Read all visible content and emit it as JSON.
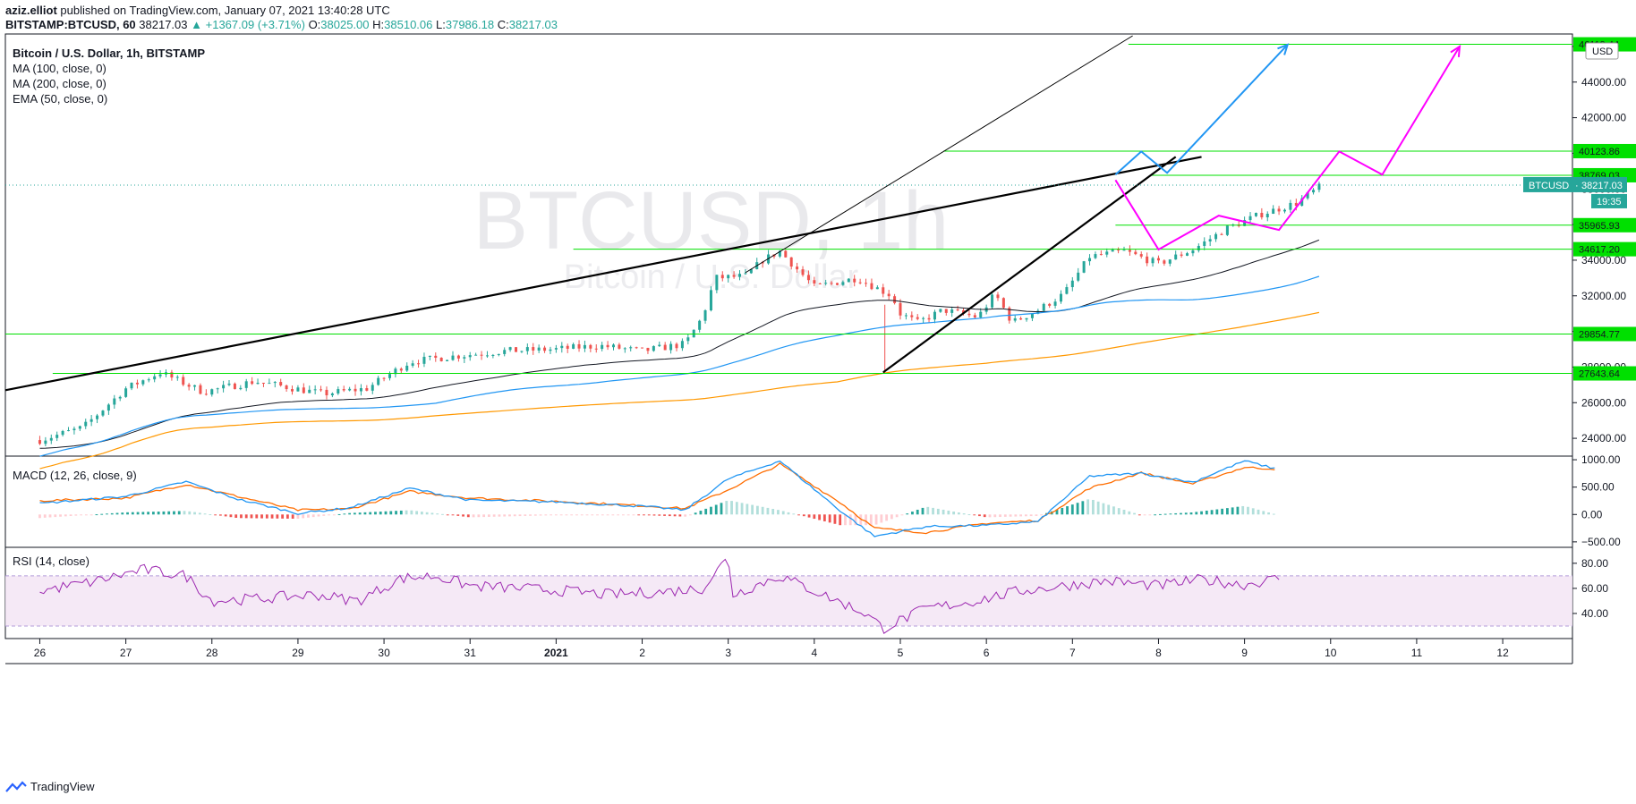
{
  "header": {
    "author": "aziz.elliot",
    "published": "published on TradingView.com, January 07, 2021 13:40:28 UTC",
    "symbol": "BITSTAMP:BTCUSD, 60",
    "last": "38217.03",
    "change": "▲ +1367.09 (+3.71%)",
    "o_label": "O:",
    "o": "38025.00",
    "h_label": "H:",
    "h": "38510.06",
    "l_label": "L:",
    "l": "37986.18",
    "c_label": "C:",
    "c": "38217.03"
  },
  "footer": {
    "brand": "TradingView"
  },
  "colors": {
    "up": "#26a69a",
    "down": "#ef5350",
    "ma100": "#2196f3",
    "ma200": "#ff9800",
    "ema50": "#131722",
    "level": "#00e000",
    "macd": "#2196f3",
    "signal": "#ff6d00",
    "rsi": "#9c27b0",
    "proj_blue": "#2196f3",
    "proj_magenta": "#ff00ff"
  },
  "chart_data": [
    {
      "type": "candlestick",
      "title": "Bitcoin / U.S. Dollar, 1h, BITSTAMP",
      "watermark": "BTCUSD, 1h",
      "watermark_sub": "Bitcoin / U.S. Dollar",
      "legend": [
        "MA (100, close, 0)",
        "MA (200, close, 0)",
        "EMA (50, close, 0)"
      ],
      "currency": "USD",
      "x_labels": [
        "26",
        "27",
        "28",
        "29",
        "30",
        "31",
        "2021",
        "2",
        "3",
        "4",
        "5",
        "6",
        "7",
        "8",
        "9",
        "10",
        "11",
        "12"
      ],
      "x_range_days": [
        -0.4,
        17.8
      ],
      "y_range": [
        23000,
        46700
      ],
      "y_ticks": [
        24000,
        26000,
        28000,
        30000,
        32000,
        34000,
        36000,
        38000,
        40000,
        42000,
        44000,
        46000
      ],
      "y_tick_labels": [
        "24000.00",
        "26000.00",
        "28000.00",
        "30000.00",
        "32000.00",
        "34000.00",
        "36000.00",
        "38000.00",
        "40000.00",
        "42000.00",
        "44000.00",
        "46000.00"
      ],
      "price_path": [
        [
          0,
          23900
        ],
        [
          0.5,
          24600
        ],
        [
          1,
          26800
        ],
        [
          1.4,
          27700
        ],
        [
          1.9,
          26600
        ],
        [
          2.5,
          27200
        ],
        [
          3.3,
          26500
        ],
        [
          3.8,
          26800
        ],
        [
          4.3,
          28300
        ],
        [
          4.8,
          28600
        ],
        [
          5.4,
          28900
        ],
        [
          6,
          29000
        ],
        [
          6.5,
          29200
        ],
        [
          7,
          28900
        ],
        [
          7.5,
          29300
        ],
        [
          7.7,
          30800
        ],
        [
          7.85,
          33000
        ],
        [
          8.2,
          33100
        ],
        [
          8.4,
          34000
        ],
        [
          8.6,
          34500
        ],
        [
          9,
          32500
        ],
        [
          9.5,
          33000
        ],
        [
          9.9,
          32000
        ],
        [
          10,
          31000
        ],
        [
          10.2,
          30500
        ],
        [
          10.5,
          31200
        ],
        [
          10.9,
          30800
        ],
        [
          11.1,
          32100
        ],
        [
          11.3,
          30500
        ],
        [
          11.6,
          31200
        ],
        [
          11.9,
          32100
        ],
        [
          12.2,
          34200
        ],
        [
          12.6,
          34500
        ],
        [
          13,
          33800
        ],
        [
          13.4,
          34600
        ],
        [
          13.8,
          35800
        ],
        [
          14.2,
          36600
        ],
        [
          14.6,
          37200
        ],
        [
          14.9,
          38200
        ]
      ],
      "price_label": {
        "name": "BTCUSD",
        "value": "38217.03",
        "countdown": "19:35"
      },
      "levels": [
        {
          "value": 46119.44,
          "label": "46119.44"
        },
        {
          "value": 40123.86,
          "label": "40123.86"
        },
        {
          "value": 38769.03,
          "label": "38769.03"
        },
        {
          "value": 35965.93,
          "label": "35965.93"
        },
        {
          "value": 34617.2,
          "label": "34617.20"
        },
        {
          "value": 29854.77,
          "label": "29854.77"
        },
        {
          "value": 27643.64,
          "label": "27643.64"
        }
      ],
      "trendlines": [
        {
          "from": [
            -0.4,
            26700
          ],
          "to": [
            13.5,
            39800
          ],
          "weight": "thick"
        },
        {
          "from": [
            9.8,
            27700
          ],
          "to": [
            13.2,
            39800
          ],
          "weight": "thick"
        },
        {
          "from": [
            8.2,
            33300
          ],
          "to": [
            12.7,
            46600
          ],
          "weight": "thin"
        }
      ],
      "projections": [
        {
          "color": "blue",
          "path": [
            [
              12.5,
              38800
            ],
            [
              12.8,
              40100
            ],
            [
              13.1,
              38900
            ],
            [
              14.5,
              46100
            ]
          ]
        },
        {
          "color": "magenta",
          "path": [
            [
              12.5,
              38500
            ],
            [
              13.0,
              34600
            ],
            [
              13.7,
              36500
            ],
            [
              14.4,
              35700
            ],
            [
              15.1,
              40100
            ],
            [
              15.6,
              38800
            ],
            [
              16.5,
              46000
            ]
          ]
        }
      ]
    },
    {
      "type": "line",
      "title": "MACD (12, 26, close, 9)",
      "y_range": [
        -600,
        1050
      ],
      "y_ticks": [
        1000,
        500,
        0,
        -500
      ],
      "y_tick_labels": [
        "1000.00",
        "500.00",
        "0.00",
        "−500.00"
      ],
      "macd": [
        [
          0,
          200
        ],
        [
          1,
          330
        ],
        [
          1.7,
          600
        ],
        [
          2.3,
          280
        ],
        [
          3,
          20
        ],
        [
          3.6,
          120
        ],
        [
          4.3,
          480
        ],
        [
          5,
          260
        ],
        [
          6,
          230
        ],
        [
          7,
          150
        ],
        [
          7.5,
          80
        ],
        [
          8,
          650
        ],
        [
          8.6,
          980
        ],
        [
          9.3,
          70
        ],
        [
          9.7,
          -400
        ],
        [
          10.3,
          -220
        ],
        [
          11,
          -200
        ],
        [
          11.6,
          -130
        ],
        [
          12.2,
          700
        ],
        [
          12.8,
          750
        ],
        [
          13.4,
          590
        ],
        [
          14,
          980
        ],
        [
          14.4,
          820
        ]
      ],
      "signal": [
        [
          0,
          250
        ],
        [
          1,
          300
        ],
        [
          1.7,
          550
        ],
        [
          2.3,
          330
        ],
        [
          3,
          80
        ],
        [
          3.6,
          100
        ],
        [
          4.3,
          420
        ],
        [
          5,
          300
        ],
        [
          6,
          240
        ],
        [
          7,
          160
        ],
        [
          7.5,
          110
        ],
        [
          8,
          450
        ],
        [
          8.6,
          920
        ],
        [
          9.3,
          220
        ],
        [
          9.7,
          -250
        ],
        [
          10.3,
          -330
        ],
        [
          11,
          -160
        ],
        [
          11.6,
          -110
        ],
        [
          12.2,
          480
        ],
        [
          12.8,
          760
        ],
        [
          13.4,
          560
        ],
        [
          14,
          860
        ],
        [
          14.4,
          830
        ]
      ]
    },
    {
      "type": "line",
      "title": "RSI (14, close)",
      "y_range": [
        20,
        92
      ],
      "band": [
        30,
        70
      ],
      "y_ticks": [
        80,
        60,
        40
      ],
      "y_tick_labels": [
        "80.00",
        "60.00",
        "40.00"
      ],
      "rsi": [
        [
          0,
          58
        ],
        [
          0.6,
          65
        ],
        [
          1.2,
          75
        ],
        [
          1.7,
          70
        ],
        [
          2,
          50
        ],
        [
          2.6,
          52
        ],
        [
          3.2,
          55
        ],
        [
          3.7,
          50
        ],
        [
          4.2,
          68
        ],
        [
          4.6,
          70
        ],
        [
          5,
          62
        ],
        [
          5.6,
          60
        ],
        [
          6.1,
          58
        ],
        [
          6.6,
          55
        ],
        [
          7.2,
          57
        ],
        [
          7.7,
          60
        ],
        [
          8,
          85
        ],
        [
          8.05,
          55
        ],
        [
          8.6,
          70
        ],
        [
          9.2,
          52
        ],
        [
          9.6,
          40
        ],
        [
          9.8,
          28
        ],
        [
          10.3,
          44
        ],
        [
          10.8,
          49
        ],
        [
          11.4,
          58
        ],
        [
          11.9,
          62
        ],
        [
          12.4,
          66
        ],
        [
          13,
          62
        ],
        [
          13.5,
          67
        ],
        [
          14,
          63
        ],
        [
          14.4,
          68
        ]
      ]
    }
  ]
}
